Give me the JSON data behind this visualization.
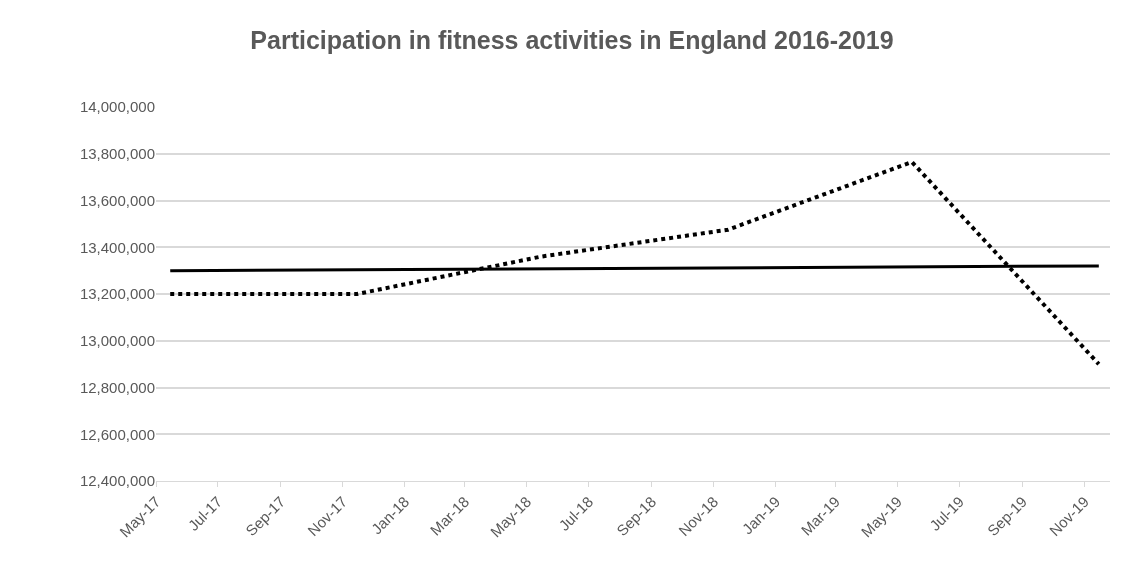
{
  "chart_data": {
    "type": "line",
    "title": "Participation in fitness activities in England 2016-2019",
    "series": [
      {
        "color": "#000000",
        "line_style": "dotted",
        "x": [
          "2017-05-15",
          "2017-11-15",
          "2018-05-15",
          "2018-11-15",
          "2019-05-15",
          "2019-11-15"
        ],
        "values": [
          13200000,
          13200000,
          13360000,
          13475000,
          13765000,
          12900000
        ]
      },
      {
        "color": "#000000",
        "line_style": "solid",
        "x": [
          "2017-05-15",
          "2019-11-15"
        ],
        "values": [
          13300000,
          13320000
        ]
      }
    ],
    "xlim": [
      "2017-05-01",
      "2019-11-26"
    ],
    "xticks": [
      {
        "value": "2017-05-01",
        "label": "May-17"
      },
      {
        "value": "2017-07-01",
        "label": "Jul-17"
      },
      {
        "value": "2017-09-01",
        "label": "Sep-17"
      },
      {
        "value": "2017-11-01",
        "label": "Nov-17"
      },
      {
        "value": "2018-01-01",
        "label": "Jan-18"
      },
      {
        "value": "2018-03-01",
        "label": "Mar-18"
      },
      {
        "value": "2018-05-01",
        "label": "May-18"
      },
      {
        "value": "2018-07-01",
        "label": "Jul-18"
      },
      {
        "value": "2018-09-01",
        "label": "Sep-18"
      },
      {
        "value": "2018-11-01",
        "label": "Nov-18"
      },
      {
        "value": "2019-01-01",
        "label": "Jan-19"
      },
      {
        "value": "2019-03-01",
        "label": "Mar-19"
      },
      {
        "value": "2019-05-01",
        "label": "May-19"
      },
      {
        "value": "2019-07-01",
        "label": "Jul-19"
      },
      {
        "value": "2019-09-01",
        "label": "Sep-19"
      },
      {
        "value": "2019-11-01",
        "label": "Nov-19"
      }
    ],
    "ylim": [
      12400000,
      14000000
    ],
    "yticks": [
      {
        "value": 12400000,
        "label": "12,400,000"
      },
      {
        "value": 12600000,
        "label": "12,600,000"
      },
      {
        "value": 12800000,
        "label": "12,800,000"
      },
      {
        "value": 13000000,
        "label": "13,000,000"
      },
      {
        "value": 13200000,
        "label": "13,200,000"
      },
      {
        "value": 13400000,
        "label": "13,400,000"
      },
      {
        "value": 13600000,
        "label": "13,600,000"
      },
      {
        "value": 13800000,
        "label": "13,800,000"
      },
      {
        "value": 14000000,
        "label": "14,000,000"
      }
    ],
    "grid": "y",
    "marker": "none"
  }
}
